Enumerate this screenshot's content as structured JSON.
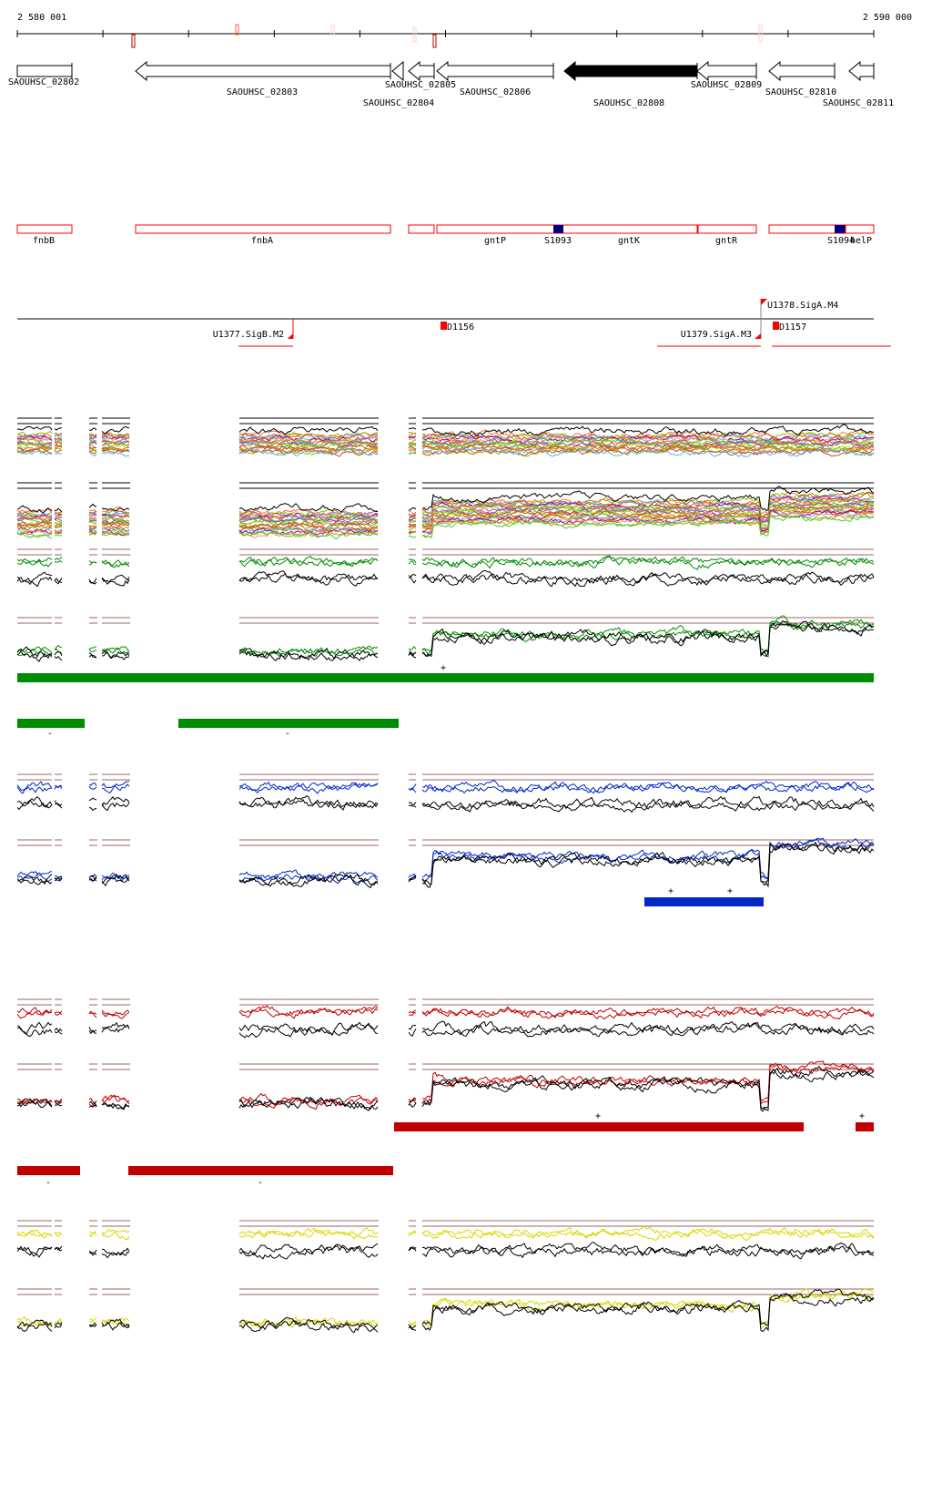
{
  "ruler": {
    "start_label": "2 580 001",
    "end_label": "2 590 000"
  },
  "genes": [
    {
      "label": "SAOUHSC_02802",
      "strand": "+",
      "filled": false
    },
    {
      "label": "SAOUHSC_02803",
      "strand": "-",
      "filled": false
    },
    {
      "label": "SAOUHSC_02804",
      "strand": "-",
      "filled": false
    },
    {
      "label": "SAOUHSC_02805",
      "strand": "-",
      "filled": false
    },
    {
      "label": "SAOUHSC_02806",
      "strand": "-",
      "filled": false
    },
    {
      "label": "SAOUHSC_02808",
      "strand": "-",
      "filled": true
    },
    {
      "label": "SAOUHSC_02809",
      "strand": "-",
      "filled": false
    },
    {
      "label": "SAOUHSC_02810",
      "strand": "-",
      "filled": false
    },
    {
      "label": "SAOUHSC_02811",
      "strand": "-",
      "filled": false
    }
  ],
  "annotations": [
    {
      "label": "fnbB"
    },
    {
      "label": "fnbA"
    },
    {
      "label": "gntP"
    },
    {
      "label": "S1093"
    },
    {
      "label": "gntK"
    },
    {
      "label": "gntR"
    },
    {
      "label": "S1094"
    },
    {
      "label": "helP"
    }
  ],
  "promoters": [
    {
      "label": "U1377.SigB.M2"
    },
    {
      "label": "D1156"
    },
    {
      "label": "U1378.SigA.M4"
    },
    {
      "label": "U1379.SigA.M3"
    },
    {
      "label": "D1157"
    }
  ],
  "segment_marks": {
    "plus": "+",
    "minus": "-"
  },
  "colors": {
    "annotation_outline": "#ff0000",
    "small_rna": "#000080",
    "reference_line": "#9b6464",
    "green": "#008c00",
    "blue": "#0028c8",
    "red": "#c00000",
    "yellow": "#d8d800",
    "multi": [
      "#ff6a3a",
      "#8fbf00",
      "#c05020",
      "#60b0ff",
      "#a000a0",
      "#ff9060",
      "#b0a000",
      "#40d040",
      "#e04080",
      "#6060c0",
      "#c08040",
      "#7fff00",
      "#d05050",
      "#a07010"
    ]
  }
}
